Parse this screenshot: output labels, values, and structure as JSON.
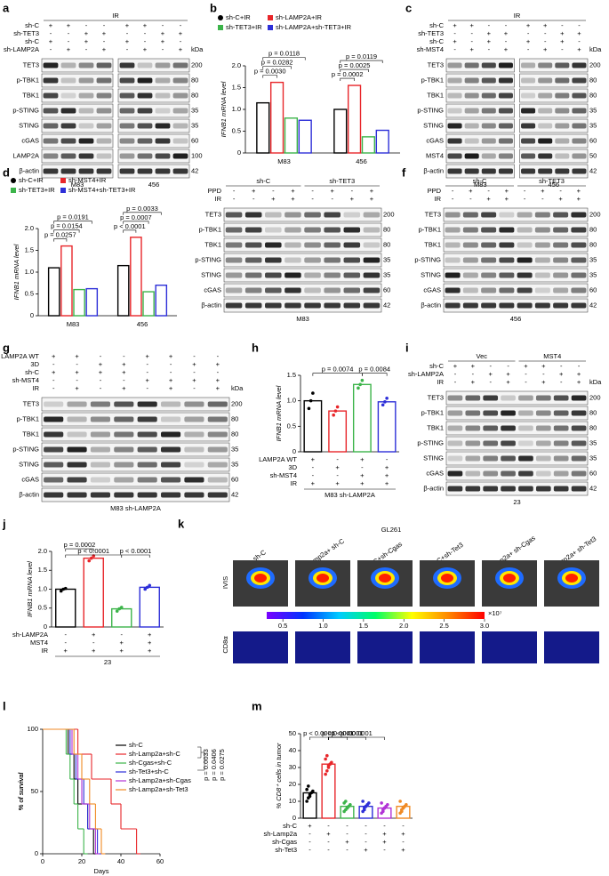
{
  "panel_letters": [
    "a",
    "b",
    "c",
    "d",
    "e",
    "f",
    "g",
    "h",
    "i",
    "j",
    "k",
    "l",
    "m"
  ],
  "blots": {
    "a": {
      "groups": [
        "IR"
      ],
      "conditions": [
        {
          "label": "sh-C",
          "symbols": [
            "+",
            "+",
            "-",
            "-",
            "+",
            "+",
            "-",
            "-"
          ]
        },
        {
          "label": "sh-TET3",
          "symbols": [
            "-",
            "-",
            "+",
            "+",
            "-",
            "-",
            "+",
            "+"
          ]
        },
        {
          "label": "sh-C",
          "symbols": [
            "+",
            "-",
            "+",
            "-",
            "+",
            "-",
            "+",
            "-"
          ]
        },
        {
          "label": "sh-LAMP2A",
          "symbols": [
            "-",
            "+",
            "-",
            "+",
            "-",
            "+",
            "-",
            "+"
          ]
        }
      ],
      "kda_label": "kDa",
      "proteins": [
        {
          "name": "TET3",
          "kda": 200
        },
        {
          "name": "p-TBK1",
          "kda": 80
        },
        {
          "name": "TBK1",
          "kda": 80
        },
        {
          "name": "p-STING",
          "kda": 35
        },
        {
          "name": "STING",
          "kda": 35
        },
        {
          "name": "cGAS",
          "kda": 60
        },
        {
          "name": "LAMP2A",
          "kda": 100
        },
        {
          "name": "β-actin",
          "kda": 42
        }
      ],
      "footer": [
        "M83",
        "456"
      ]
    },
    "c": {
      "groups": [
        "IR"
      ],
      "conditions": [
        {
          "label": "sh-C",
          "symbols": [
            "+",
            "+",
            "-",
            "-",
            "+",
            "+",
            "-",
            "-"
          ]
        },
        {
          "label": "sh-TET3",
          "symbols": [
            "-",
            "-",
            "+",
            "+",
            "-",
            "-",
            "+",
            "+"
          ]
        },
        {
          "label": "sh-C",
          "symbols": [
            "+",
            "-",
            "+",
            "-",
            "+",
            "-",
            "+",
            "-"
          ]
        },
        {
          "label": "sh-MST4",
          "symbols": [
            "-",
            "+",
            "-",
            "+",
            "-",
            "+",
            "-",
            "+"
          ]
        }
      ],
      "kda_label": "kDa",
      "proteins": [
        {
          "name": "TET3",
          "kda": 200
        },
        {
          "name": "p-TBK1",
          "kda": 80
        },
        {
          "name": "TBK1",
          "kda": 80
        },
        {
          "name": "p-STING",
          "kda": 35
        },
        {
          "name": "STING",
          "kda": 35
        },
        {
          "name": "cGAS",
          "kda": 60
        },
        {
          "name": "MST4",
          "kda": 50
        },
        {
          "name": "β-actin",
          "kda": 42
        }
      ],
      "footer": [
        "M83",
        "456"
      ]
    },
    "e": {
      "groups": [
        "sh-C",
        "sh-TET3"
      ],
      "conditions": [
        {
          "label": "PPD",
          "symbols": [
            "-",
            "+",
            "-",
            "+",
            "-",
            "+",
            "-",
            "+"
          ]
        },
        {
          "label": "IR",
          "symbols": [
            "-",
            "-",
            "+",
            "+",
            "-",
            "-",
            "+",
            "+"
          ]
        }
      ],
      "proteins": [
        {
          "name": "TET3",
          "kda": 200
        },
        {
          "name": "p-TBK1",
          "kda": 80
        },
        {
          "name": "TBK1",
          "kda": 80
        },
        {
          "name": "p-STING",
          "kda": 35
        },
        {
          "name": "STING",
          "kda": 35
        },
        {
          "name": "cGAS",
          "kda": 60
        },
        {
          "name": "β-actin",
          "kda": 42
        }
      ],
      "footer": [
        "M83"
      ]
    },
    "f": {
      "groups": [
        "sh-C",
        "sh-TET3"
      ],
      "conditions": [
        {
          "label": "PPD",
          "symbols": [
            "-",
            "+",
            "-",
            "+",
            "-",
            "+",
            "-",
            "+"
          ]
        },
        {
          "label": "IR",
          "symbols": [
            "-",
            "-",
            "+",
            "+",
            "-",
            "-",
            "+",
            "+"
          ]
        }
      ],
      "proteins": [
        {
          "name": "TET3",
          "kda": 200
        },
        {
          "name": "p-TBK1",
          "kda": 80
        },
        {
          "name": "TBK1",
          "kda": 80
        },
        {
          "name": "p-STING",
          "kda": 35
        },
        {
          "name": "STING",
          "kda": 35
        },
        {
          "name": "cGAS",
          "kda": 60
        },
        {
          "name": "β-actin",
          "kda": 42
        }
      ],
      "footer": [
        "456"
      ]
    },
    "g": {
      "conditions": [
        {
          "label": "LAMP2A WT",
          "symbols": [
            "+",
            "+",
            "-",
            "-",
            "+",
            "+",
            "-",
            "-"
          ]
        },
        {
          "label": "3D",
          "symbols": [
            "-",
            "-",
            "+",
            "+",
            "-",
            "-",
            "+",
            "+"
          ]
        },
        {
          "label": "sh-C",
          "symbols": [
            "+",
            "+",
            "+",
            "+",
            "-",
            "-",
            "-",
            "-"
          ]
        },
        {
          "label": "sh-MST4",
          "symbols": [
            "-",
            "-",
            "-",
            "-",
            "+",
            "+",
            "+",
            "+"
          ]
        },
        {
          "label": "IR",
          "symbols": [
            "-",
            "+",
            "-",
            "+",
            "-",
            "+",
            "-",
            "+"
          ]
        }
      ],
      "kda_label": "kDa",
      "proteins": [
        {
          "name": "TET3",
          "kda": 200
        },
        {
          "name": "p-TBK1",
          "kda": 80
        },
        {
          "name": "TBK1",
          "kda": 80
        },
        {
          "name": "p-STING",
          "kda": 35
        },
        {
          "name": "STING",
          "kda": 35
        },
        {
          "name": "cGAS",
          "kda": 60
        },
        {
          "name": "β-actin",
          "kda": 42
        }
      ],
      "footer": [
        "M83 sh-LAMP2A"
      ]
    },
    "i": {
      "groups": [
        "Vec",
        "MST4"
      ],
      "conditions": [
        {
          "label": "sh-C",
          "symbols": [
            "+",
            "+",
            "-",
            "-",
            "+",
            "+",
            "-",
            "-"
          ]
        },
        {
          "label": "sh-LAMP2A",
          "symbols": [
            "-",
            "-",
            "+",
            "+",
            "-",
            "-",
            "+",
            "+"
          ]
        },
        {
          "label": "IR",
          "symbols": [
            "-",
            "+",
            "-",
            "+",
            "-",
            "+",
            "-",
            "+"
          ]
        }
      ],
      "kda_label": "kDa",
      "proteins": [
        {
          "name": "TET3",
          "kda": 200
        },
        {
          "name": "p-TBK1",
          "kda": 80
        },
        {
          "name": "TBK1",
          "kda": 80
        },
        {
          "name": "p-STING",
          "kda": 35
        },
        {
          "name": "STING",
          "kda": 35
        },
        {
          "name": "cGAS",
          "kda": 60
        },
        {
          "name": "β-actin",
          "kda": 42
        }
      ],
      "footer": [
        "23"
      ]
    }
  },
  "charts": {
    "b": {
      "type": "bar",
      "ylabel": "IFNB1 mRNA level",
      "categories": [
        "M83",
        "456"
      ],
      "ylim": [
        0,
        2
      ],
      "yticks": [
        0,
        0.5,
        {
          "value": 1,
          "label": "1.0"
        },
        1.5,
        {
          "value": 2,
          "label": "2.0"
        }
      ],
      "series": [
        {
          "name": "sh-C+IR",
          "color": "#000000",
          "values": [
            1.15,
            1.0
          ]
        },
        {
          "name": "sh-LAMP2A+IR",
          "color": "#e8262a",
          "values": [
            1.62,
            1.55
          ]
        },
        {
          "name": "sh-TET3+IR",
          "color": "#3cb44a",
          "values": [
            0.8,
            0.37
          ]
        },
        {
          "name": "sh-LAMP2A+sh-TET3+IR",
          "color": "#2d2fd8",
          "values": [
            0.75,
            0.52
          ]
        }
      ],
      "pvalues": [
        [
          "p = 0.0030",
          "p = 0.0282",
          "p = 0.0118"
        ],
        [
          "p = 0.0002",
          "p = 0.0025",
          "p = 0.0119"
        ]
      ]
    },
    "d": {
      "type": "bar",
      "ylabel": "IFNB1 mRNA level",
      "categories": [
        "M83",
        "456"
      ],
      "ylim": [
        0,
        2
      ],
      "yticks": [
        0,
        0.5,
        {
          "value": 1,
          "label": "1.0"
        },
        1.5,
        {
          "value": 2,
          "label": "2.0"
        }
      ],
      "series": [
        {
          "name": "sh-C+IR",
          "color": "#000000",
          "values": [
            1.1,
            1.15
          ]
        },
        {
          "name": "sh-MST4+IR",
          "color": "#e8262a",
          "values": [
            1.6,
            1.8
          ]
        },
        {
          "name": "sh-TET3+IR",
          "color": "#3cb44a",
          "values": [
            0.6,
            0.55
          ]
        },
        {
          "name": "sh-MST4+sh-TET3+IR",
          "color": "#2d2fd8",
          "values": [
            0.62,
            0.7
          ]
        }
      ],
      "pvalues": [
        [
          "p = 0.0257",
          "p = 0.0154",
          "p = 0.0191"
        ],
        [
          "p < 0.0001",
          "p = 0.0007",
          "p = 0.0033"
        ]
      ]
    },
    "h": {
      "type": "bar",
      "ylabel": "IFNB1 mRNA level",
      "ylim": [
        0,
        1.5
      ],
      "yticks": [
        0,
        0.5,
        {
          "value": 1,
          "label": "1.0"
        },
        1.5
      ],
      "values": [
        1.0,
        0.8,
        1.32,
        0.98
      ],
      "colors": [
        "#000000",
        "#e8262a",
        "#3cb44a",
        "#2d2fd8"
      ],
      "points": [
        [
          0.85,
          1.0,
          1.15
        ],
        [
          0.72,
          0.8,
          0.88
        ],
        [
          1.25,
          1.32,
          1.4
        ],
        [
          0.92,
          0.98,
          1.05
        ]
      ],
      "conditions": [
        {
          "label": "LAMP2A WT",
          "symbols": [
            "+",
            "-",
            "+",
            "-"
          ]
        },
        {
          "label": "3D",
          "symbols": [
            "-",
            "+",
            "-",
            "+"
          ]
        },
        {
          "label": "sh-MST4",
          "symbols": [
            "-",
            "-",
            "+",
            "+"
          ]
        },
        {
          "label": "IR",
          "symbols": [
            "+",
            "+",
            "+",
            "+"
          ]
        }
      ],
      "footer": "M83 sh-LAMP2A",
      "pvalues": [
        "p = 0.0074",
        "p = 0.0084"
      ]
    },
    "j": {
      "type": "bar",
      "ylabel": "IFNB1 mRNA level",
      "ylim": [
        0,
        2
      ],
      "yticks": [
        0,
        0.5,
        {
          "value": 1,
          "label": "1.0"
        },
        1.5,
        {
          "value": 2,
          "label": "2.0"
        }
      ],
      "values": [
        1.0,
        1.82,
        0.48,
        1.05
      ],
      "colors": [
        "#000000",
        "#e8262a",
        "#3cb44a",
        "#2d2fd8"
      ],
      "points": [
        [
          0.95,
          1.0,
          1.02
        ],
        [
          1.75,
          1.82,
          1.88
        ],
        [
          0.42,
          0.48,
          0.52
        ],
        [
          1.0,
          1.05,
          1.1
        ]
      ],
      "conditions": [
        {
          "label": "sh-LAMP2A",
          "symbols": [
            "-",
            "+",
            "-",
            "+"
          ]
        },
        {
          "label": "MST4",
          "symbols": [
            "-",
            "-",
            "+",
            "+"
          ]
        },
        {
          "label": "IR",
          "symbols": [
            "+",
            "+",
            "+",
            "+"
          ]
        }
      ],
      "footer": "23",
      "pvalues": [
        "p = 0.0002",
        "p < 0.0001",
        "p < 0.0001"
      ]
    },
    "m": {
      "type": "bar",
      "ylabel": "% CD8⁺ cells in tumor",
      "ylim": [
        0,
        50
      ],
      "yticks": [
        0,
        10,
        20,
        30,
        40,
        50
      ],
      "values": [
        15,
        32,
        7,
        7,
        6,
        7
      ],
      "colors": [
        "#000000",
        "#e8262a",
        "#3cb44a",
        "#2d2fd8",
        "#b233d6",
        "#f08a24"
      ],
      "points": [
        [
          10,
          12,
          14,
          15,
          16,
          17,
          19,
          13
        ],
        [
          26,
          28,
          30,
          32,
          33,
          35,
          37,
          31
        ],
        [
          4,
          5,
          6,
          7,
          8,
          9,
          10,
          6
        ],
        [
          4,
          6,
          7,
          8,
          9,
          10,
          5,
          7
        ],
        [
          3,
          5,
          6,
          7,
          8,
          9,
          4,
          6
        ],
        [
          3,
          5,
          6,
          7,
          8,
          10,
          4,
          6
        ]
      ],
      "conditions": [
        {
          "label": "sh-C",
          "symbols": [
            "+",
            "-",
            "-",
            "-",
            "-",
            "-"
          ]
        },
        {
          "label": "sh-Lamp2a",
          "symbols": [
            "-",
            "+",
            "-",
            "-",
            "+",
            "+"
          ]
        },
        {
          "label": "sh-Cgas",
          "symbols": [
            "-",
            "-",
            "+",
            "-",
            "+",
            "-"
          ]
        },
        {
          "label": "sh-Tet3",
          "symbols": [
            "-",
            "-",
            "-",
            "+",
            "-",
            "+"
          ]
        }
      ],
      "pvalues": [
        "p < 0.0001",
        "p < 0.0001",
        "p < 0.0001",
        "p < 0.0001"
      ]
    },
    "l": {
      "type": "line",
      "xlabel": "Days",
      "ylabel": "% of survival",
      "xlim": [
        0,
        60
      ],
      "xticks": [
        0,
        20,
        40,
        60
      ],
      "ylim": [
        0,
        100
      ],
      "yticks": [
        0,
        50,
        100
      ],
      "series": [
        {
          "name": "sh-C",
          "color": "#000000",
          "x": [
            0,
            13,
            16,
            18,
            23,
            26
          ],
          "values": [
            100,
            80,
            60,
            40,
            20,
            0
          ]
        },
        {
          "name": "sh-Lamp2a+sh-C",
          "color": "#e8262a",
          "x": [
            0,
            18,
            25,
            35,
            40,
            48
          ],
          "values": [
            100,
            80,
            60,
            40,
            20,
            0
          ]
        },
        {
          "name": "sh-Cgas+sh-C",
          "color": "#3cb44a",
          "x": [
            0,
            12,
            14,
            16,
            18,
            21
          ],
          "values": [
            100,
            80,
            60,
            40,
            20,
            0
          ]
        },
        {
          "name": "sh-Tet3+sh-C",
          "color": "#2d2fd8",
          "x": [
            0,
            14,
            17,
            21,
            23,
            28
          ],
          "values": [
            100,
            80,
            60,
            40,
            20,
            0
          ]
        },
        {
          "name": "sh-Lamp2a+sh-Cgas",
          "color": "#b233d6",
          "x": [
            0,
            15,
            18,
            20,
            24,
            27
          ],
          "values": [
            100,
            80,
            60,
            40,
            20,
            0
          ]
        },
        {
          "name": "sh-Lamp2a+sh-Tet3",
          "color": "#f08a24",
          "x": [
            0,
            16,
            20,
            24,
            27,
            30
          ],
          "values": [
            100,
            80,
            60,
            40,
            20,
            0
          ]
        }
      ],
      "pvalues": [
        "p = 0.0033",
        "p = 0.0406",
        "p = 0.0275"
      ]
    }
  },
  "imaging": {
    "title": "GL261",
    "labels": [
      "sh-C",
      "sh-Lamp2a+ sh-C",
      "sh-C+sh-Cgas",
      "sh-C+sh-Tet3",
      "sh-Lamp2a+ sh-Cgas",
      "sh-Lamp2a+ sh-Tet3"
    ],
    "rows": [
      "IVIS",
      "CD8α"
    ],
    "colorbar": {
      "lim": [
        0.3,
        3
      ],
      "ticks": [
        0.5,
        {
          "value": 1,
          "label": "1.0"
        },
        1.5,
        {
          "value": 2,
          "label": "2.0"
        },
        2.5,
        {
          "value": 3,
          "label": "3.0"
        }
      ],
      "unit": "×10⁷"
    }
  }
}
